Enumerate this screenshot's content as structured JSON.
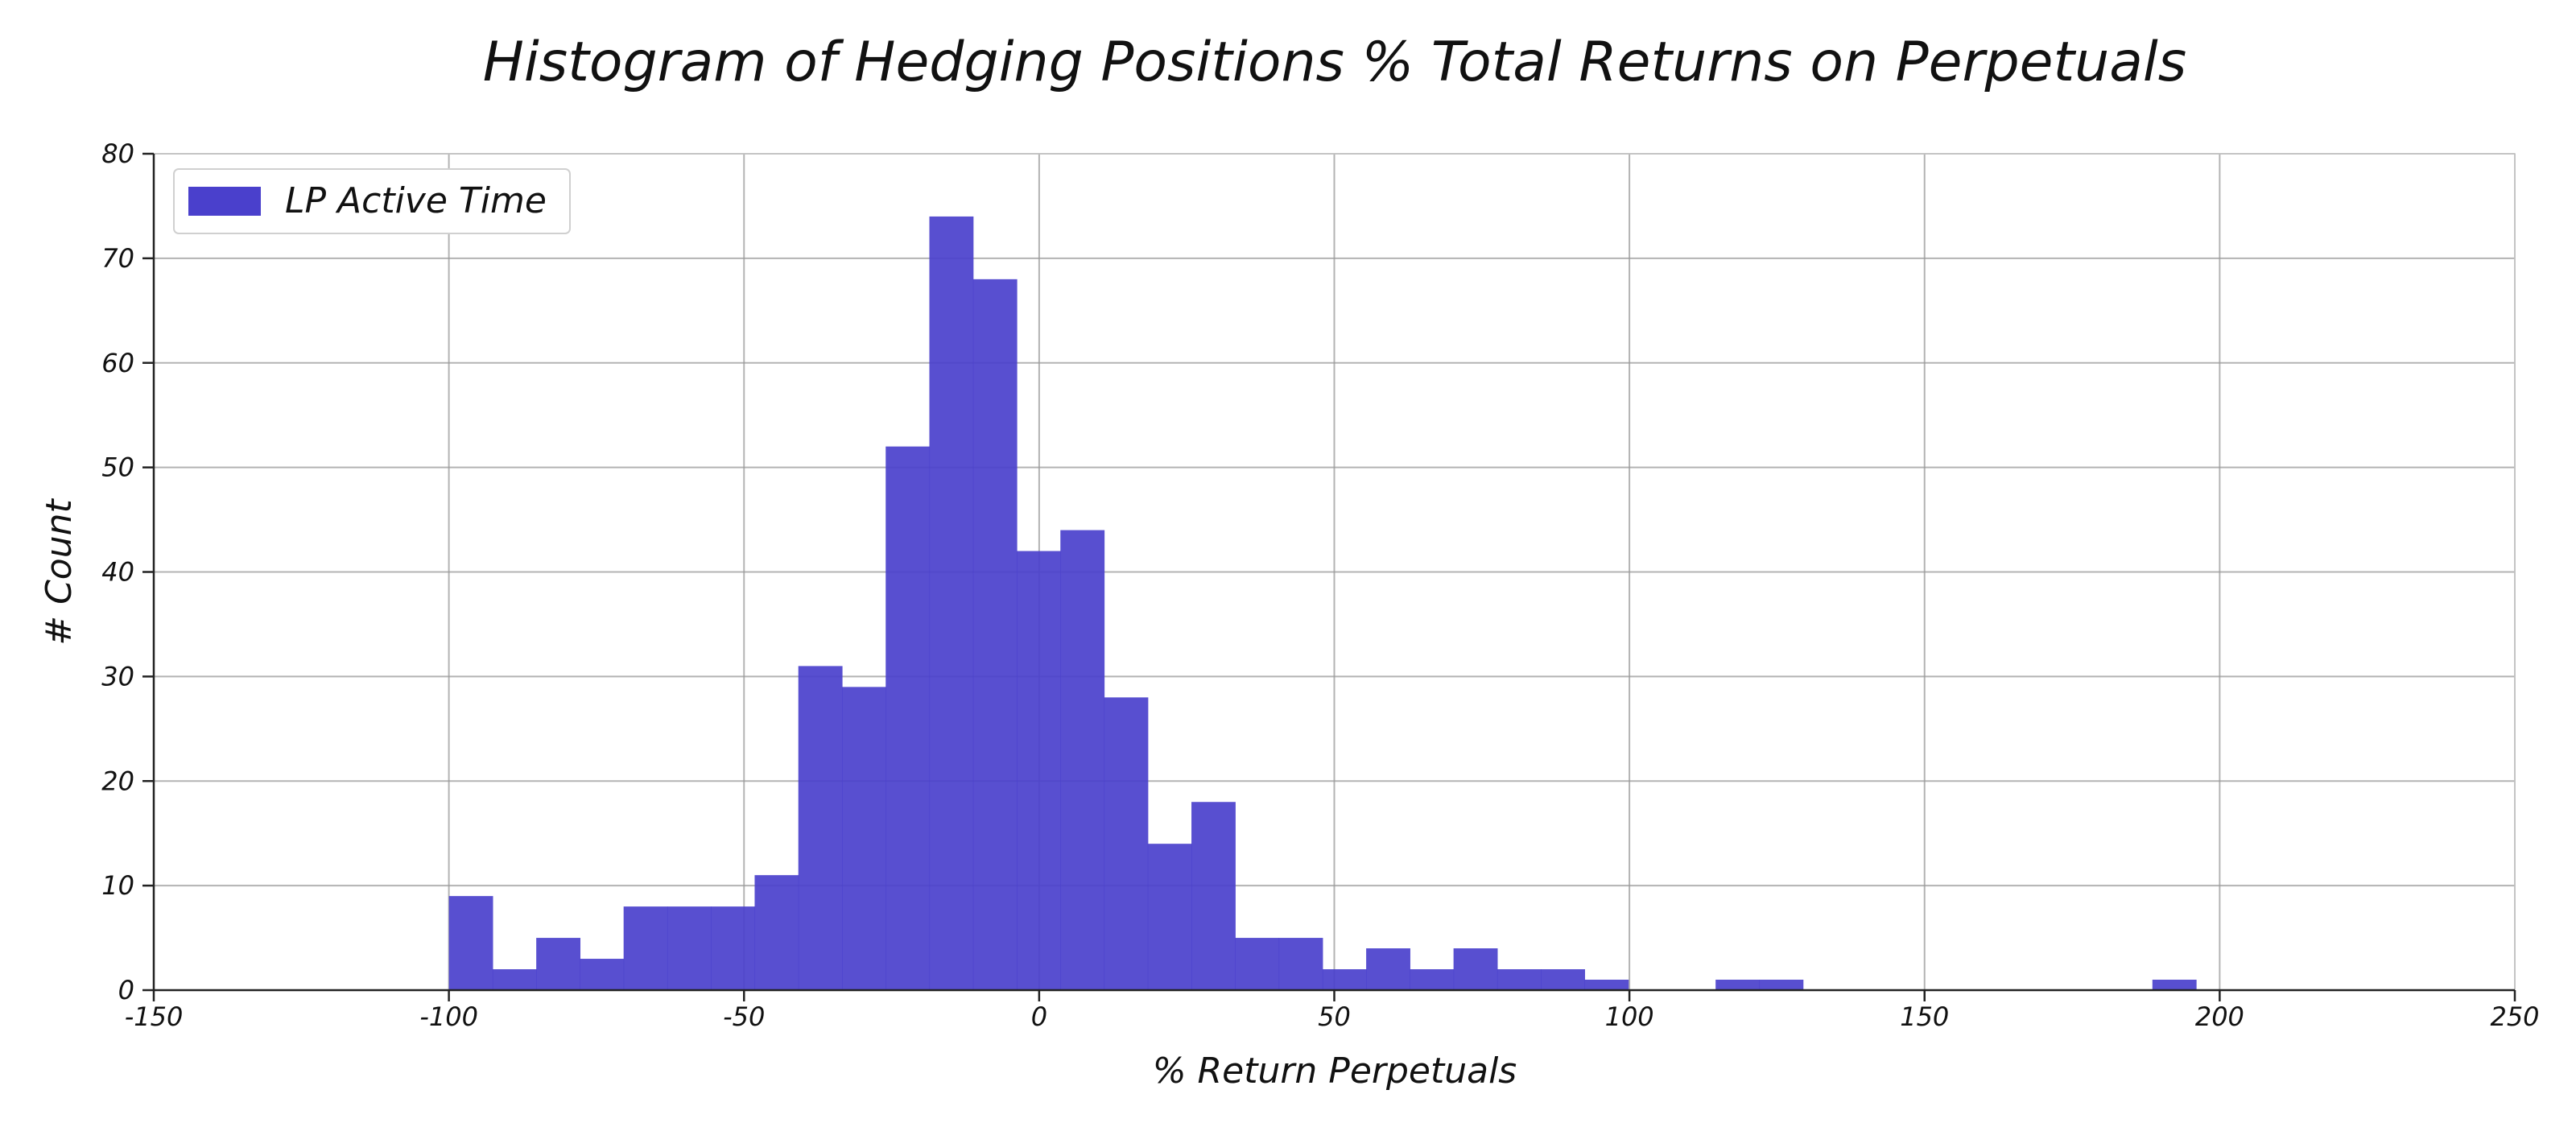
{
  "chart_data": {
    "type": "bar",
    "title": "Histogram of Hedging Positions % Total Returns on Perpetuals",
    "xlabel": "% Return Perpetuals",
    "ylabel": "# Count",
    "xlim": [
      -150,
      250
    ],
    "ylim": [
      0,
      80
    ],
    "x_ticks": [
      -150,
      -100,
      -50,
      0,
      50,
      100,
      150,
      200,
      250
    ],
    "y_ticks": [
      0,
      10,
      20,
      30,
      40,
      50,
      60,
      70,
      80
    ],
    "grid": true,
    "legend_position": "top-left",
    "series": [
      {
        "name": "LP Active Time",
        "color": "#4a40cc",
        "bins": [
          {
            "start": -100.0,
            "end": -92.6,
            "count": 9
          },
          {
            "start": -92.6,
            "end": -85.2,
            "count": 2
          },
          {
            "start": -85.2,
            "end": -77.8,
            "count": 5
          },
          {
            "start": -77.8,
            "end": -70.4,
            "count": 3
          },
          {
            "start": -70.4,
            "end": -63.0,
            "count": 8
          },
          {
            "start": -63.0,
            "end": -55.6,
            "count": 8
          },
          {
            "start": -55.6,
            "end": -48.2,
            "count": 8
          },
          {
            "start": -48.2,
            "end": -40.8,
            "count": 11
          },
          {
            "start": -40.8,
            "end": -33.4,
            "count": 31
          },
          {
            "start": -33.4,
            "end": -26.0,
            "count": 29
          },
          {
            "start": -26.0,
            "end": -18.6,
            "count": 52
          },
          {
            "start": -18.6,
            "end": -11.2,
            "count": 74
          },
          {
            "start": -11.2,
            "end": -3.8,
            "count": 68
          },
          {
            "start": -3.8,
            "end": 3.6,
            "count": 42
          },
          {
            "start": 3.6,
            "end": 11.0,
            "count": 44
          },
          {
            "start": 11.0,
            "end": 18.4,
            "count": 28
          },
          {
            "start": 18.4,
            "end": 25.8,
            "count": 14
          },
          {
            "start": 25.8,
            "end": 33.2,
            "count": 18
          },
          {
            "start": 33.2,
            "end": 40.6,
            "count": 5
          },
          {
            "start": 40.6,
            "end": 48.0,
            "count": 5
          },
          {
            "start": 48.0,
            "end": 55.4,
            "count": 2
          },
          {
            "start": 55.4,
            "end": 62.8,
            "count": 4
          },
          {
            "start": 62.8,
            "end": 70.2,
            "count": 2
          },
          {
            "start": 70.2,
            "end": 77.6,
            "count": 4
          },
          {
            "start": 77.6,
            "end": 85.0,
            "count": 2
          },
          {
            "start": 85.0,
            "end": 92.4,
            "count": 2
          },
          {
            "start": 92.4,
            "end": 99.8,
            "count": 1
          },
          {
            "start": 114.6,
            "end": 122.0,
            "count": 1
          },
          {
            "start": 122.0,
            "end": 129.4,
            "count": 1
          },
          {
            "start": 188.6,
            "end": 196.0,
            "count": 1
          }
        ]
      }
    ]
  }
}
